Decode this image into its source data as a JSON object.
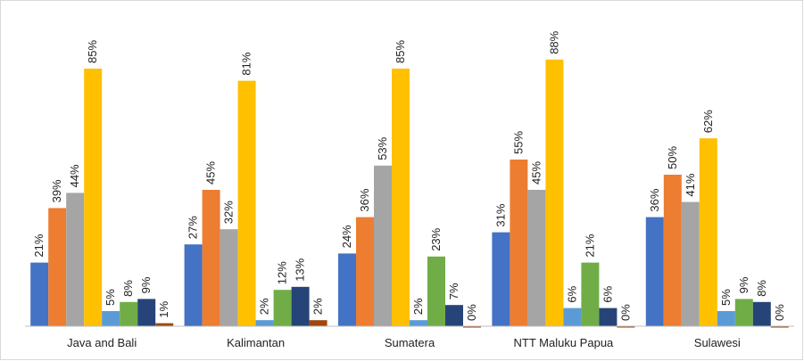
{
  "chart_data": {
    "type": "bar",
    "categories": [
      "Java and Bali",
      "Kalimantan",
      "Sumatera",
      "NTT Maluku Papua",
      "Sulawesi"
    ],
    "series": [
      {
        "color": "#4472c4",
        "values": [
          21,
          27,
          24,
          31,
          36
        ],
        "value_labels": [
          "21%",
          "27%",
          "24%",
          "31%",
          "36%"
        ]
      },
      {
        "color": "#ed7d31",
        "values": [
          39,
          45,
          36,
          55,
          50
        ],
        "value_labels": [
          "39%",
          "45%",
          "36%",
          "55%",
          "50%"
        ]
      },
      {
        "color": "#a5a5a5",
        "values": [
          44,
          32,
          53,
          45,
          41
        ],
        "value_labels": [
          "44%",
          "32%",
          "53%",
          "45%",
          "41%"
        ]
      },
      {
        "color": "#ffc000",
        "values": [
          85,
          81,
          85,
          88,
          62
        ],
        "value_labels": [
          "85%",
          "81%",
          "85%",
          "88%",
          "62%"
        ]
      },
      {
        "color": "#5b9bd5",
        "values": [
          5,
          2,
          2,
          6,
          5
        ],
        "value_labels": [
          "5%",
          "2%",
          "2%",
          "6%",
          "5%"
        ]
      },
      {
        "color": "#70ad47",
        "values": [
          8,
          12,
          23,
          21,
          9
        ],
        "value_labels": [
          "8%",
          "12%",
          "23%",
          "21%",
          "9%"
        ]
      },
      {
        "color": "#264478",
        "values": [
          9,
          13,
          7,
          6,
          8
        ],
        "value_labels": [
          "9%",
          "13%",
          "7%",
          "6%",
          "8%"
        ]
      },
      {
        "color": "#9e480e",
        "values": [
          1,
          2,
          0,
          0,
          0
        ],
        "value_labels": [
          "1%",
          "2%",
          "0%",
          "0%",
          "0%"
        ]
      }
    ],
    "ylim": [
      0,
      100
    ]
  }
}
